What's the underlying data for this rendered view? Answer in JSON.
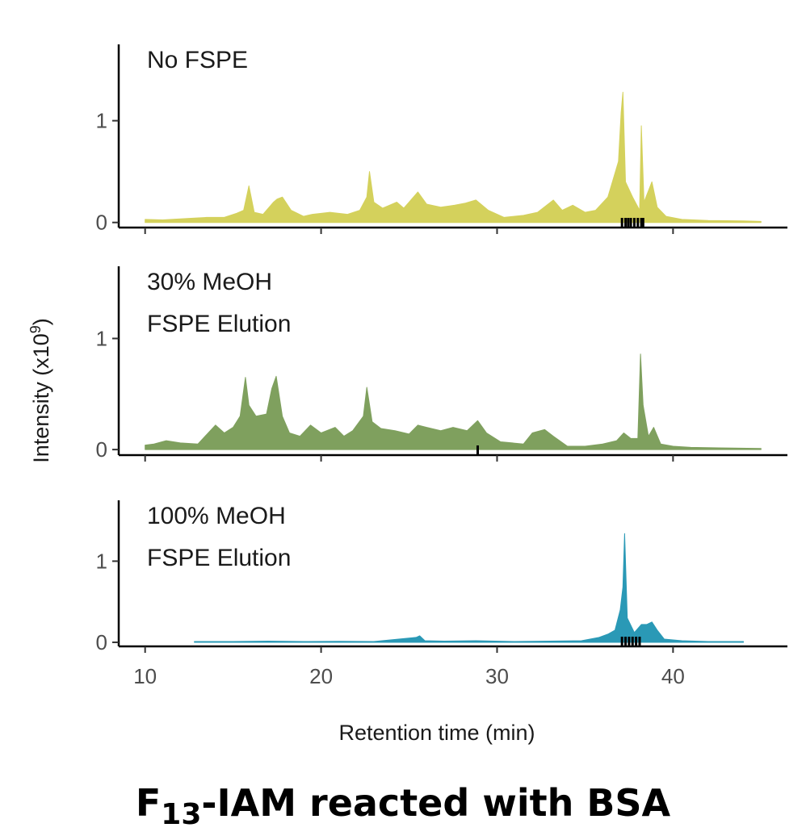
{
  "chart_data": {
    "type": "area",
    "xlabel": "Retention time (min)",
    "ylabel": "Intensity (x10^9)",
    "ylabel_base": "Intensity (x10",
    "ylabel_exp": "9",
    "ylabel_close": ")",
    "xlim": [
      8.5,
      46.5
    ],
    "x_ticks": [
      10,
      20,
      30,
      40
    ],
    "x_tick_labels": [
      "10",
      "20",
      "30",
      "40"
    ],
    "y_ticks": [
      0,
      1
    ],
    "y_tick_labels": [
      "0",
      "1"
    ],
    "panels": [
      {
        "name": "No FSPE",
        "label_lines": [
          "No FSPE"
        ],
        "color": "#d4d15c",
        "ylim": [
          -0.05,
          1.75
        ],
        "rug": [
          37.1,
          37.3,
          37.45,
          37.6,
          37.8,
          38.0,
          38.2,
          38.3
        ],
        "peaks": [
          [
            10,
            0.03
          ],
          [
            11,
            0.025
          ],
          [
            12.5,
            0.04
          ],
          [
            13.5,
            0.05
          ],
          [
            14.5,
            0.05
          ],
          [
            15.2,
            0.09
          ],
          [
            15.6,
            0.12
          ],
          [
            15.9,
            0.36
          ],
          [
            16.2,
            0.1
          ],
          [
            16.7,
            0.08
          ],
          [
            17.3,
            0.2
          ],
          [
            17.5,
            0.23
          ],
          [
            17.8,
            0.25
          ],
          [
            18.3,
            0.12
          ],
          [
            19.0,
            0.06
          ],
          [
            19.5,
            0.08
          ],
          [
            20.5,
            0.1
          ],
          [
            21.5,
            0.08
          ],
          [
            22.2,
            0.12
          ],
          [
            22.6,
            0.25
          ],
          [
            22.75,
            0.5
          ],
          [
            23.0,
            0.2
          ],
          [
            23.5,
            0.14
          ],
          [
            24.3,
            0.2
          ],
          [
            24.7,
            0.14
          ],
          [
            25.5,
            0.3
          ],
          [
            26.0,
            0.18
          ],
          [
            26.8,
            0.15
          ],
          [
            27.6,
            0.17
          ],
          [
            28.2,
            0.19
          ],
          [
            28.8,
            0.22
          ],
          [
            29.5,
            0.12
          ],
          [
            30.4,
            0.05
          ],
          [
            31.5,
            0.07
          ],
          [
            32.3,
            0.1
          ],
          [
            33.2,
            0.22
          ],
          [
            33.7,
            0.12
          ],
          [
            34.3,
            0.17
          ],
          [
            35.0,
            0.1
          ],
          [
            35.6,
            0.12
          ],
          [
            36.3,
            0.25
          ],
          [
            36.9,
            0.6
          ],
          [
            37.05,
            1.08
          ],
          [
            37.15,
            1.28
          ],
          [
            37.3,
            0.4
          ],
          [
            37.7,
            0.25
          ],
          [
            38.1,
            0.12
          ],
          [
            38.2,
            0.95
          ],
          [
            38.35,
            0.2
          ],
          [
            38.8,
            0.4
          ],
          [
            39.1,
            0.15
          ],
          [
            39.6,
            0.06
          ],
          [
            40.5,
            0.03
          ],
          [
            42,
            0.02
          ],
          [
            44,
            0.015
          ],
          [
            45,
            0.01
          ]
        ]
      },
      {
        "name": "30% MeOH FSPE Elution",
        "label_lines": [
          "30% MeOH",
          "FSPE Elution"
        ],
        "color": "#7fa05e",
        "ylim": [
          -0.05,
          1.65
        ],
        "rug": [
          28.9
        ],
        "peaks": [
          [
            10,
            0.04
          ],
          [
            10.5,
            0.05
          ],
          [
            11.2,
            0.08
          ],
          [
            12,
            0.06
          ],
          [
            13,
            0.05
          ],
          [
            14,
            0.22
          ],
          [
            14.5,
            0.15
          ],
          [
            15.0,
            0.2
          ],
          [
            15.4,
            0.3
          ],
          [
            15.7,
            0.65
          ],
          [
            15.9,
            0.4
          ],
          [
            16.3,
            0.3
          ],
          [
            16.9,
            0.32
          ],
          [
            17.2,
            0.55
          ],
          [
            17.45,
            0.66
          ],
          [
            17.8,
            0.3
          ],
          [
            18.2,
            0.15
          ],
          [
            18.8,
            0.12
          ],
          [
            19.4,
            0.22
          ],
          [
            20.0,
            0.15
          ],
          [
            20.8,
            0.2
          ],
          [
            21.3,
            0.12
          ],
          [
            21.8,
            0.17
          ],
          [
            22.4,
            0.3
          ],
          [
            22.6,
            0.56
          ],
          [
            22.9,
            0.25
          ],
          [
            23.4,
            0.19
          ],
          [
            24.2,
            0.17
          ],
          [
            25.0,
            0.14
          ],
          [
            25.5,
            0.22
          ],
          [
            26.0,
            0.2
          ],
          [
            26.8,
            0.17
          ],
          [
            27.5,
            0.2
          ],
          [
            28.3,
            0.17
          ],
          [
            28.9,
            0.26
          ],
          [
            29.4,
            0.15
          ],
          [
            30.2,
            0.07
          ],
          [
            31.5,
            0.05
          ],
          [
            32.0,
            0.15
          ],
          [
            32.7,
            0.18
          ],
          [
            33.2,
            0.12
          ],
          [
            34.0,
            0.03
          ],
          [
            35.0,
            0.03
          ],
          [
            36.0,
            0.05
          ],
          [
            36.8,
            0.08
          ],
          [
            37.2,
            0.15
          ],
          [
            37.6,
            0.1
          ],
          [
            38.0,
            0.1
          ],
          [
            38.15,
            0.86
          ],
          [
            38.3,
            0.4
          ],
          [
            38.6,
            0.12
          ],
          [
            38.9,
            0.2
          ],
          [
            39.3,
            0.05
          ],
          [
            40,
            0.03
          ],
          [
            41,
            0.02
          ],
          [
            43,
            0.015
          ],
          [
            45,
            0.01
          ]
        ]
      },
      {
        "name": "100% MeOH FSPE Elution",
        "label_lines": [
          "100% MeOH",
          "FSPE Elution"
        ],
        "color": "#2a99b6",
        "ylim": [
          -0.05,
          1.75
        ],
        "rug": [
          37.1,
          37.3,
          37.5,
          37.7,
          37.9,
          38.1
        ],
        "peaks": [
          [
            12.8,
            0.01
          ],
          [
            15,
            0.01
          ],
          [
            17,
            0.015
          ],
          [
            19,
            0.01
          ],
          [
            21,
            0.012
          ],
          [
            23,
            0.01
          ],
          [
            25.4,
            0.06
          ],
          [
            25.6,
            0.08
          ],
          [
            25.9,
            0.02
          ],
          [
            27,
            0.015
          ],
          [
            28.8,
            0.02
          ],
          [
            31,
            0.01
          ],
          [
            33,
            0.015
          ],
          [
            34.8,
            0.02
          ],
          [
            35.8,
            0.06
          ],
          [
            36.3,
            0.1
          ],
          [
            36.7,
            0.15
          ],
          [
            37.0,
            0.4
          ],
          [
            37.15,
            0.68
          ],
          [
            37.25,
            1.34
          ],
          [
            37.4,
            0.3
          ],
          [
            37.8,
            0.12
          ],
          [
            38.2,
            0.22
          ],
          [
            38.5,
            0.22
          ],
          [
            38.8,
            0.25
          ],
          [
            39.1,
            0.15
          ],
          [
            39.5,
            0.04
          ],
          [
            40.5,
            0.02
          ],
          [
            42,
            0.01
          ],
          [
            44,
            0.01
          ]
        ]
      }
    ]
  },
  "caption": {
    "prefix": "F",
    "subscript": "13",
    "suffix": "-IAM reacted with BSA"
  }
}
